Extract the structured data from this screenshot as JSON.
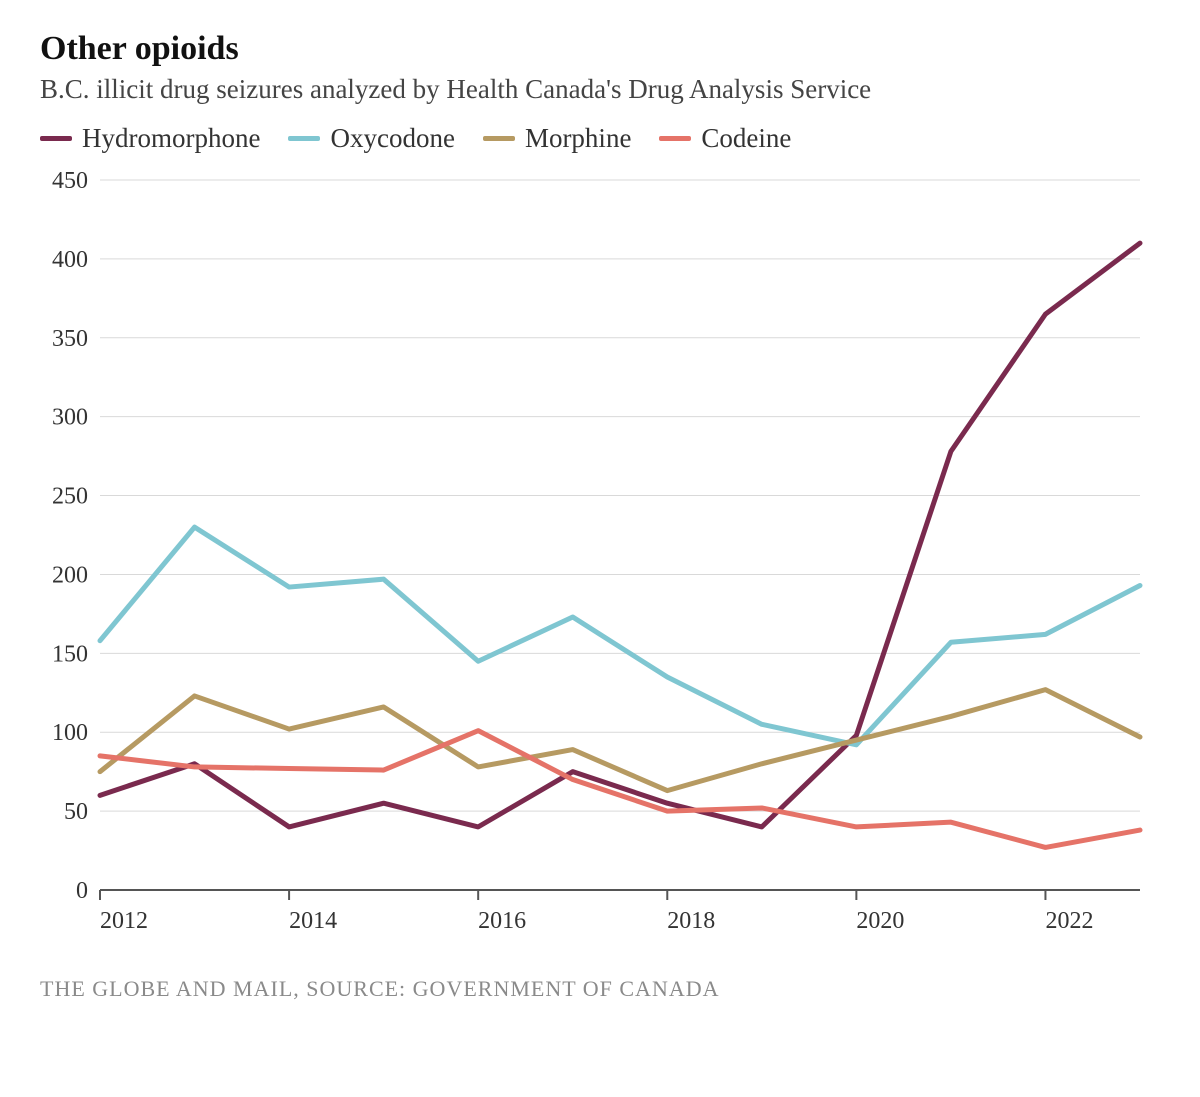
{
  "chart": {
    "type": "line",
    "title": "Other opioids",
    "subtitle": "B.C. illicit drug seizures analyzed by Health Canada's Drug Analysis Service",
    "title_fontsize": 34,
    "subtitle_fontsize": 27,
    "legend_fontsize": 27,
    "axis_label_fontsize": 24,
    "background_color": "#ffffff",
    "grid_color": "#d9d9d9",
    "axis_color": "#555555",
    "text_color": "#333333",
    "line_width": 5,
    "x": {
      "values": [
        2012,
        2013,
        2014,
        2015,
        2016,
        2017,
        2018,
        2019,
        2020,
        2021,
        2022,
        2023
      ],
      "ticks": [
        2012,
        2014,
        2016,
        2018,
        2020,
        2022
      ],
      "lim": [
        2012,
        2023
      ]
    },
    "y": {
      "ticks": [
        0,
        50,
        100,
        150,
        200,
        250,
        300,
        350,
        400,
        450
      ],
      "lim": [
        0,
        450
      ]
    },
    "series": [
      {
        "name": "Hydromorphone",
        "color": "#7a2a4e",
        "values": [
          60,
          80,
          40,
          55,
          40,
          75,
          55,
          40,
          98,
          278,
          365,
          410
        ]
      },
      {
        "name": "Oxycodone",
        "color": "#7fc6d1",
        "values": [
          158,
          230,
          192,
          197,
          145,
          173,
          135,
          105,
          92,
          157,
          162,
          193
        ]
      },
      {
        "name": "Morphine",
        "color": "#b69a62",
        "values": [
          75,
          123,
          102,
          116,
          78,
          89,
          63,
          80,
          95,
          110,
          127,
          97
        ]
      },
      {
        "name": "Codeine",
        "color": "#e57368",
        "values": [
          85,
          78,
          77,
          76,
          101,
          70,
          50,
          52,
          40,
          43,
          27,
          38
        ]
      }
    ],
    "source": "THE GLOBE AND MAIL, SOURCE: GOVERNMENT OF CANADA"
  }
}
